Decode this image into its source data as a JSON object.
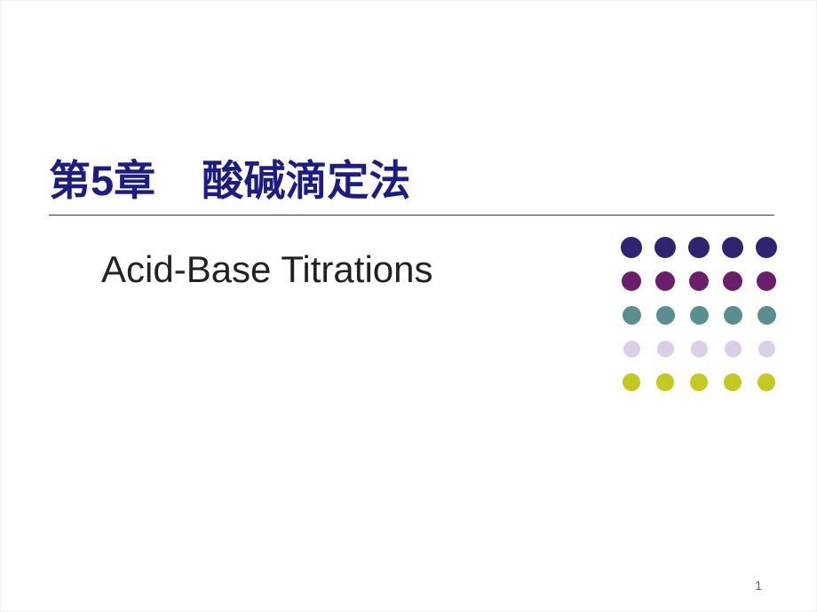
{
  "slide": {
    "background_color": "#ffffff"
  },
  "titles": {
    "main": "第5章    酸碱滴定法",
    "main_color": "#1c1c84",
    "main_fontsize": 47,
    "main_fontweight": "bold",
    "subtitle": "Acid-Base Titrations",
    "subtitle_color": "#222222",
    "subtitle_fontsize": 42,
    "subtitle_fontweight": "normal",
    "rule_color": "#333333"
  },
  "page_number": {
    "value": "1",
    "fontsize": 14,
    "color": "#5a5a5a"
  },
  "dot_grid": {
    "dot_size": 24,
    "colors": [
      [
        "#2e2470",
        "#2e2470",
        "#2e2470",
        "#2e2470",
        "#2e2470"
      ],
      [
        "#6b1f6b",
        "#6b1f6b",
        "#6b1f6b",
        "#6b1f6b",
        "#6b1f6b"
      ],
      [
        "#5b8e8e",
        "#5b8e8e",
        "#5b8e8e",
        "#5b8e8e",
        "#5b8e8e"
      ],
      [
        "#dbcfe8",
        "#dbcfe8",
        "#dbcfe8",
        "#dbcfe8",
        "#dbcfe8"
      ],
      [
        "#c5c81f",
        "#c5c81f",
        "#c5c81f",
        "#c5c81f",
        "#c5c81f"
      ]
    ],
    "sizes": [
      [
        24,
        24,
        24,
        24,
        24
      ],
      [
        22,
        22,
        22,
        22,
        22
      ],
      [
        21,
        21,
        21,
        21,
        21
      ],
      [
        19,
        19,
        19,
        19,
        19
      ],
      [
        20,
        20,
        20,
        20,
        20
      ]
    ]
  }
}
